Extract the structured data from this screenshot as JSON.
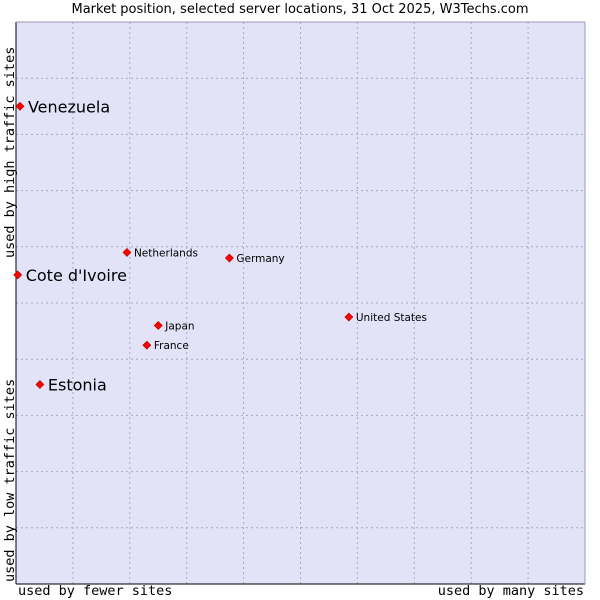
{
  "chart_data": {
    "type": "scatter",
    "title": "Market position, selected server locations, 31 Oct 2025, W3Techs.com",
    "xlabel_left": "used by fewer sites",
    "xlabel_right": "used by many sites",
    "ylabel_top": "used by high traffic sites",
    "ylabel_bottom": "used by low traffic sites",
    "xlim": [
      0,
      100
    ],
    "ylim": [
      0,
      100
    ],
    "grid": true,
    "colors": {
      "plot_bg": "#e3e3f8",
      "grid": "#a8a8c8",
      "point": "#ff0000",
      "axis": "#000000"
    },
    "points": [
      {
        "label": "Venezuela",
        "x": 0.7,
        "y": 85,
        "highlight": true
      },
      {
        "label": "Cote d'Ivoire",
        "x": 0.3,
        "y": 55,
        "highlight": true
      },
      {
        "label": "Estonia",
        "x": 4.2,
        "y": 35.5,
        "highlight": true
      },
      {
        "label": "Netherlands",
        "x": 19.5,
        "y": 59,
        "highlight": false
      },
      {
        "label": "Germany",
        "x": 37.5,
        "y": 58,
        "highlight": false
      },
      {
        "label": "United States",
        "x": 58.5,
        "y": 47.5,
        "highlight": false
      },
      {
        "label": "Japan",
        "x": 25,
        "y": 46,
        "highlight": false
      },
      {
        "label": "France",
        "x": 23,
        "y": 42.5,
        "highlight": false
      }
    ]
  }
}
